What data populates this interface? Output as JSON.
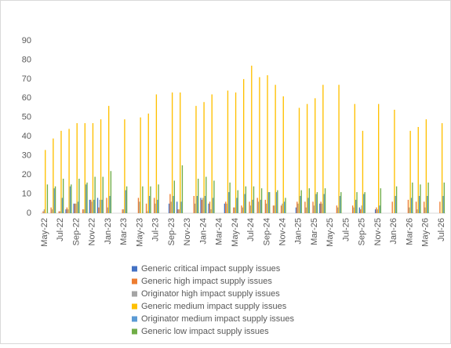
{
  "chart_data": {
    "type": "bar",
    "categories": [
      "May-22",
      null,
      "Jul-22",
      null,
      "Sep-22",
      null,
      "Nov-22",
      null,
      "Jan-23",
      null,
      "Mar-23",
      null,
      "May-23",
      null,
      "Jul-23",
      null,
      "Sep-23",
      null,
      "Nov-23",
      null,
      "Jan-24",
      null,
      "Mar-24",
      null,
      "May-24",
      null,
      "Jul-24",
      null,
      "Sep-24",
      null,
      "Nov-24",
      null,
      "Jan-25",
      null,
      "Mar-25",
      null,
      "May-25",
      null,
      "Jul-25",
      null,
      "Sep-25",
      null,
      "Nov-25",
      null,
      "Jan-26",
      null,
      "Mar-26",
      null,
      "May-26",
      null,
      "Jul-26"
    ],
    "series": [
      {
        "name": "Generic critical impact supply issues",
        "color": "#4472c4",
        "values": [
          0,
          0,
          0,
          2,
          5,
          0,
          7,
          8,
          0,
          null,
          0,
          null,
          0,
          0,
          0,
          null,
          5,
          6,
          null,
          0,
          8,
          5,
          null,
          5,
          0,
          0,
          0,
          0,
          0,
          0,
          0,
          null,
          3,
          0,
          0,
          5,
          null,
          0,
          null,
          0,
          3,
          null,
          2,
          null,
          0,
          null,
          0,
          0,
          0,
          null,
          0
        ]
      },
      {
        "name": "Generic high impact supply issues",
        "color": "#ed7d31",
        "values": [
          1,
          3,
          1,
          3,
          5,
          2,
          7,
          3,
          8,
          null,
          2,
          null,
          8,
          5,
          8,
          null,
          10,
          2,
          null,
          9,
          7,
          6,
          null,
          6,
          3,
          4,
          6,
          8,
          7,
          4,
          4,
          null,
          6,
          6,
          6,
          6,
          null,
          4,
          null,
          4,
          2,
          null,
          3,
          null,
          6,
          null,
          7,
          6,
          6,
          null,
          6
        ]
      },
      {
        "name": "Originator high impact supply issues",
        "color": "#a5a5a5",
        "values": [
          2,
          2,
          1,
          2,
          5,
          2,
          6,
          7,
          3,
          null,
          2,
          null,
          6,
          1,
          5,
          null,
          6,
          2,
          null,
          5,
          8,
          2,
          null,
          5,
          3,
          3,
          4,
          6,
          5,
          4,
          5,
          null,
          5,
          3,
          4,
          5,
          null,
          3,
          null,
          3,
          4,
          null,
          2,
          null,
          0,
          null,
          3,
          2,
          3,
          null,
          0
        ]
      },
      {
        "name": "Generic medium impact supply issues",
        "color": "#ffc000",
        "values": [
          33,
          39,
          43,
          44,
          47,
          47,
          47,
          49,
          56,
          null,
          49,
          null,
          50,
          52,
          62,
          null,
          63,
          63,
          null,
          56,
          58,
          62,
          null,
          64,
          63,
          70,
          77,
          71,
          72,
          67,
          61,
          null,
          55,
          57,
          60,
          67,
          null,
          67,
          null,
          57,
          43,
          null,
          57,
          null,
          54,
          null,
          43,
          45,
          49,
          null,
          47
        ]
      },
      {
        "name": "Originator medium impact supply issues",
        "color": "#5b9bd5",
        "values": [
          0,
          13,
          8,
          14,
          6,
          15,
          7,
          7,
          9,
          null,
          12,
          null,
          0,
          9,
          7,
          null,
          9,
          6,
          null,
          9,
          9,
          8,
          null,
          11,
          8,
          10,
          7,
          7,
          11,
          11,
          6,
          null,
          9,
          8,
          10,
          10,
          null,
          9,
          null,
          7,
          10,
          null,
          4,
          null,
          9,
          null,
          8,
          9,
          9,
          null,
          9
        ]
      },
      {
        "name": "Generic low impact supply issues",
        "color": "#70ad47",
        "values": [
          15,
          14,
          18,
          15,
          18,
          16,
          19,
          19,
          22,
          null,
          14,
          null,
          14,
          14,
          15,
          null,
          17,
          25,
          null,
          18,
          19,
          17,
          null,
          16,
          12,
          14,
          14,
          13,
          11,
          12,
          8,
          null,
          12,
          13,
          11,
          13,
          null,
          11,
          null,
          11,
          11,
          null,
          13,
          null,
          14,
          null,
          16,
          15,
          16,
          null,
          16
        ]
      }
    ],
    "ylim": [
      0,
      90
    ],
    "yticks": [
      0,
      10,
      20,
      30,
      40,
      50,
      60,
      70,
      80,
      90
    ],
    "grid": false
  }
}
